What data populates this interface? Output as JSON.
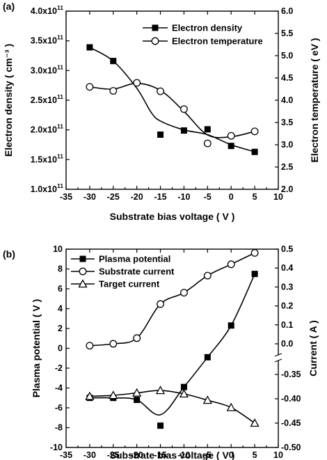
{
  "chart_data": [
    {
      "panel_label": "(a)",
      "type": "line",
      "xlabel": "Substrate bias voltage ( V )",
      "ylabel_left": "Electron density ( cm⁻³ )",
      "ylabel_right": "Electron temperature ( eV )",
      "xlim": [
        -35,
        10
      ],
      "x_ticks": [
        -35,
        -30,
        -25,
        -20,
        -15,
        -10,
        -5,
        0,
        5,
        10
      ],
      "ylim_left": [
        100000000000.0,
        400000000000.0
      ],
      "y_ticks_left": [
        {
          "value": 100000000000.0,
          "mant": "1.0x10",
          "exp": "11"
        },
        {
          "value": 150000000000.0,
          "mant": "1.5x10",
          "exp": "11"
        },
        {
          "value": 200000000000.0,
          "mant": "2.0x10",
          "exp": "11"
        },
        {
          "value": 250000000000.0,
          "mant": "2.5x10",
          "exp": "11"
        },
        {
          "value": 300000000000.0,
          "mant": "3.0x10",
          "exp": "11"
        },
        {
          "value": 350000000000.0,
          "mant": "3.5x10",
          "exp": "11"
        },
        {
          "value": 400000000000.0,
          "mant": "4.0x10",
          "exp": "11"
        }
      ],
      "ylim_right": [
        2.0,
        6.0
      ],
      "y_ticks_right": [
        "2.0",
        "2.5",
        "3.0",
        "3.5",
        "4.0",
        "4.5",
        "5.0",
        "5.5",
        "6.0"
      ],
      "legend_position": "top-right",
      "series": [
        {
          "name": "Electron density",
          "axis": "left",
          "marker": "filled-square",
          "x": [
            -30,
            -25,
            -15,
            -10,
            -5,
            0,
            5
          ],
          "y": [
            339000000000.0,
            316000000000.0,
            192000000000.0,
            199000000000.0,
            201000000000.0,
            173000000000.0,
            163000000000.0
          ],
          "curve": [
            [
              -30,
              339000000000.0
            ],
            [
              -25,
              316000000000.0
            ],
            [
              -20,
              270000000000.0
            ],
            [
              -17,
              230000000000.0
            ],
            [
              -15,
              215000000000.0
            ],
            [
              -10,
              200000000000.0
            ],
            [
              -5,
              192000000000.0
            ],
            [
              0,
              175000000000.0
            ],
            [
              5,
              163000000000.0
            ]
          ]
        },
        {
          "name": "Electron temperature",
          "axis": "right",
          "marker": "open-circle",
          "x": [
            -30,
            -25,
            -20,
            -15,
            -10,
            -5,
            0,
            5
          ],
          "y": [
            4.3,
            4.21,
            4.39,
            4.2,
            3.8,
            3.03,
            3.2,
            3.3
          ],
          "curve": [
            [
              -30,
              4.3
            ],
            [
              -25,
              4.25
            ],
            [
              -20,
              4.38
            ],
            [
              -15,
              4.22
            ],
            [
              -10,
              3.75
            ],
            [
              -5,
              3.22
            ],
            [
              0,
              3.18
            ],
            [
              5,
              3.3
            ]
          ]
        }
      ]
    },
    {
      "panel_label": "(b)",
      "type": "line",
      "xlabel": "Substrate bias voltage ( V )",
      "ylabel_left": "Plasma potential ( V )",
      "ylabel_right": "Current ( A )",
      "xlim": [
        -35,
        10
      ],
      "x_ticks": [
        -35,
        -30,
        -25,
        -20,
        -15,
        -10,
        -5,
        0,
        5,
        10
      ],
      "ylim_left": [
        -10,
        10
      ],
      "y_ticks_left": [
        "-10",
        "-8",
        "-6",
        "-4",
        "-2",
        "0",
        "2",
        "4",
        "6",
        "8",
        "10"
      ],
      "y_axis_right_note": "broken axis: upper segment 0.0 to 0.5, lower segment -0.50 to -0.35",
      "y_ticks_right": [
        "-0.50",
        "-0.45",
        "-0.40",
        "-0.35",
        "0.0",
        "0.1",
        "0.2",
        "0.3",
        "0.4",
        "0.5"
      ],
      "legend_position": "top-left",
      "series": [
        {
          "name": "Plasma potential",
          "axis": "left",
          "marker": "filled-square",
          "x": [
            -30,
            -25,
            -20,
            -15,
            -10,
            -5,
            0,
            5
          ],
          "y": [
            -5.0,
            -5.0,
            -5.2,
            -7.8,
            -3.9,
            -0.9,
            2.3,
            7.5
          ]
        },
        {
          "name": "Substrate current",
          "axis": "right",
          "marker": "open-circle",
          "x": [
            -30,
            -25,
            -20,
            -15,
            -10,
            -5,
            0,
            5
          ],
          "y": [
            -0.01,
            0.0,
            0.03,
            0.21,
            0.27,
            0.36,
            0.42,
            0.48
          ]
        },
        {
          "name": "Target current",
          "axis": "right",
          "marker": "open-triangle",
          "x": [
            -30,
            -25,
            -20,
            -15,
            -10,
            -5,
            0,
            5
          ],
          "y": [
            -0.395,
            -0.393,
            -0.388,
            -0.383,
            -0.39,
            -0.403,
            -0.418,
            -0.45
          ]
        }
      ]
    }
  ]
}
